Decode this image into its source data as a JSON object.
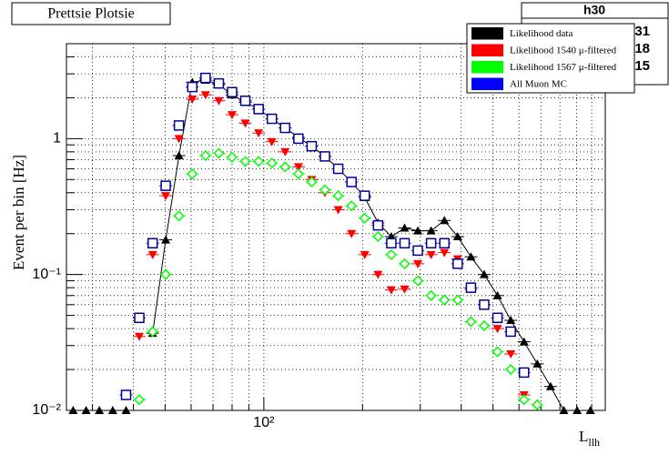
{
  "chart_data": {
    "type": "scatter",
    "title": "Prettsie Plotsie",
    "ylabel": "Event per bin [Hz]",
    "xlabel": {
      "main": "L",
      "sub": "llh"
    },
    "stats": {
      "name": "h30",
      "lines": [
        "31",
        "18",
        "15"
      ]
    },
    "x": [
      26.2,
      28.7,
      31.5,
      34.6,
      38.0,
      41.7,
      45.8,
      50.2,
      55.1,
      60.5,
      66.4,
      72.9,
      80.0,
      87.8,
      96.4,
      105.8,
      116.1,
      127.5,
      139.9,
      153.6,
      168.6,
      185.1,
      203.1,
      223.0,
      244.8,
      268.7,
      294.9,
      323.7,
      355.4,
      390.1,
      428.2,
      470.0,
      515.9,
      566.4,
      621.7,
      682.4,
      749.1,
      822.3,
      902.6,
      990.8
    ],
    "series": [
      {
        "name": "Likelihood data",
        "color": "#000000",
        "marker": "triangle-up",
        "line": true,
        "values": [
          0.01,
          0.01,
          0.01,
          0.01,
          0.01,
          null,
          0.037,
          0.18,
          0.75,
          2.6,
          2.7,
          2.5,
          2.1,
          1.85,
          1.65,
          1.4,
          1.2,
          1.02,
          0.88,
          0.74,
          0.6,
          0.48,
          0.37,
          0.24,
          0.19,
          0.22,
          0.21,
          0.21,
          0.25,
          0.19,
          0.135,
          0.1,
          0.07,
          0.046,
          0.032,
          0.022,
          0.015,
          0.01,
          0.01,
          0.01
        ]
      },
      {
        "name": "Likelihood 1540 μ-filtered",
        "color": "#ff0000",
        "marker": "triangle-down",
        "line": false,
        "values": [
          null,
          null,
          null,
          null,
          null,
          0.035,
          0.14,
          0.38,
          1.0,
          1.95,
          2.1,
          1.9,
          1.5,
          1.3,
          1.1,
          0.95,
          0.8,
          0.62,
          0.5,
          0.4,
          0.3,
          0.2,
          0.14,
          0.1,
          0.077,
          0.078,
          0.12,
          0.14,
          0.145,
          0.13,
          0.078,
          0.06,
          0.04,
          0.026,
          0.013,
          null,
          null,
          null,
          null,
          null
        ]
      },
      {
        "name": "Likelihood 1567 μ-filtered",
        "color": "#00ff00",
        "marker": "diamond-open",
        "line": false,
        "values": [
          null,
          null,
          null,
          null,
          null,
          0.012,
          0.038,
          0.1,
          0.27,
          0.55,
          0.75,
          0.78,
          0.73,
          0.68,
          0.68,
          0.66,
          0.62,
          0.55,
          0.48,
          0.42,
          0.38,
          0.32,
          0.26,
          0.19,
          0.14,
          0.12,
          0.09,
          0.07,
          0.065,
          0.065,
          0.045,
          0.042,
          0.027,
          0.02,
          0.012,
          0.011,
          null,
          null,
          null,
          null
        ]
      },
      {
        "name": "All Muon MC",
        "color": "#0000ff",
        "marker": "square-open",
        "line": false,
        "values": [
          null,
          null,
          null,
          null,
          0.013,
          0.048,
          0.17,
          0.45,
          1.25,
          2.4,
          2.8,
          2.55,
          2.2,
          1.9,
          1.65,
          1.4,
          1.2,
          1.0,
          0.88,
          0.74,
          0.6,
          0.48,
          0.38,
          0.23,
          0.17,
          0.17,
          0.15,
          0.17,
          0.17,
          0.12,
          0.08,
          0.06,
          0.048,
          0.038,
          0.019,
          null,
          null,
          null,
          null,
          null
        ]
      }
    ],
    "xlim": [
      25,
      1100
    ],
    "ylim": [
      0.01,
      5
    ],
    "xlog": true,
    "ylog": true,
    "grid": true,
    "xticks": [
      {
        "value": 100,
        "label": "10²"
      }
    ],
    "yticks": [
      {
        "value": 0.01,
        "label": "10⁻²"
      },
      {
        "value": 0.1,
        "label": "10⁻¹"
      },
      1
    ],
    "xminor": [
      30,
      40,
      50,
      60,
      70,
      80,
      90,
      200,
      300,
      400,
      500,
      600,
      700,
      800,
      900,
      1000
    ],
    "yminor": [
      0.02,
      0.03,
      0.04,
      0.05,
      0.06,
      0.07,
      0.08,
      0.09,
      0.2,
      0.3,
      0.4,
      0.5,
      0.6,
      0.7,
      0.8,
      0.9,
      2,
      3,
      4
    ],
    "legend": "top-right"
  }
}
